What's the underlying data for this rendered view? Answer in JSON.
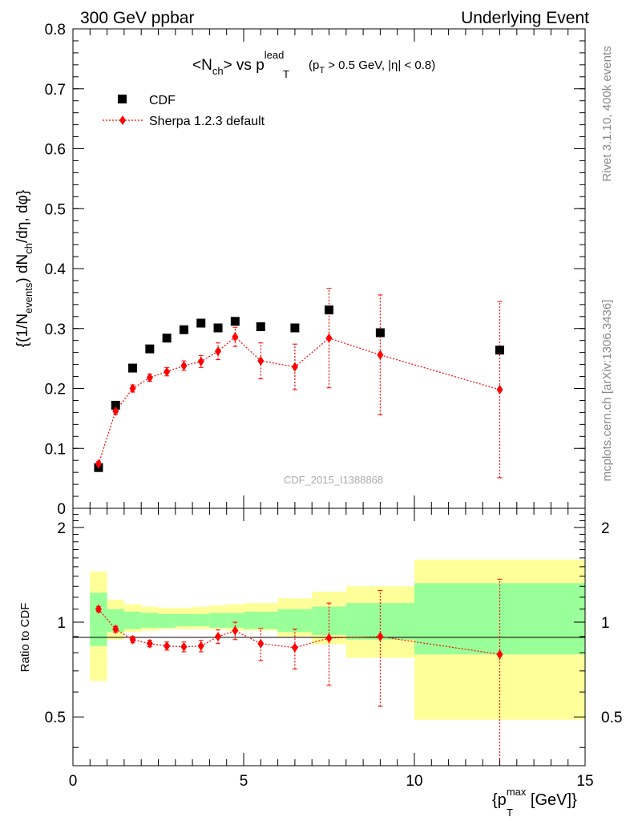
{
  "header": {
    "left": "300 GeV ppbar",
    "right": "Underlying Event"
  },
  "side_labels": {
    "rivet": "Rivet 3.1.10,  400k events",
    "mcplots": "mcplots.cern.ch [arXiv:1306.3436]"
  },
  "plot_title": {
    "main": "<N",
    "main_sub": "ch",
    "main_rest": "> vs p",
    "pt_sup": "lead",
    "pt_sub": "T",
    "cut_open": "(p",
    "cut_sub": "T",
    "cut_rest": " > 0.5 GeV, |η| < 0.8)"
  },
  "analysis_id": "CDF_2015_I1388868",
  "colors": {
    "data": "#000000",
    "mc": "#ff0000",
    "band_inner": "#99ff99",
    "band_outer": "#ffff99"
  },
  "chart_data": [
    {
      "type": "scatter",
      "panel": "main",
      "ylabel": "{(1/N_events) dN_ch/dη, dφ}",
      "ylabel_parts": {
        "a": "{(1/N",
        "a_sub": "events",
        "b": ") dN",
        "b_sub": "ch",
        "c": "/dη, dφ}"
      },
      "ylim": [
        0,
        0.8
      ],
      "y_ticks": [
        "0",
        "0.1",
        "0.2",
        "0.3",
        "0.4",
        "0.5",
        "0.6",
        "0.7",
        "0.8"
      ],
      "legend": [
        "CDF",
        "Sherpa 1.2.3 default"
      ],
      "legend_position": "top-left",
      "series": [
        {
          "name": "CDF",
          "marker": "square",
          "x": [
            0.75,
            1.25,
            1.75,
            2.25,
            2.75,
            3.25,
            3.75,
            4.25,
            4.75,
            5.5,
            6.5,
            7.5,
            9.0,
            12.5
          ],
          "y": [
            0.068,
            0.172,
            0.234,
            0.266,
            0.284,
            0.298,
            0.309,
            0.301,
            0.312,
            0.303,
            0.301,
            0.331,
            0.293,
            0.264
          ]
        },
        {
          "name": "Sherpa 1.2.3 default",
          "marker": "diamond",
          "x": [
            0.75,
            1.25,
            1.75,
            2.25,
            2.75,
            3.25,
            3.75,
            4.25,
            4.75,
            5.5,
            6.5,
            7.5,
            9.0,
            12.5
          ],
          "y": [
            0.074,
            0.162,
            0.2,
            0.218,
            0.228,
            0.238,
            0.245,
            0.262,
            0.286,
            0.246,
            0.236,
            0.284,
            0.256,
            0.198
          ],
          "err": [
            0.004,
            0.005,
            0.006,
            0.006,
            0.007,
            0.008,
            0.01,
            0.014,
            0.016,
            0.03,
            0.038,
            0.083,
            0.1,
            0.147
          ]
        }
      ]
    },
    {
      "type": "scatter",
      "panel": "ratio",
      "ylabel": "Ratio to CDF",
      "xlabel_parts": {
        "a": "{p",
        "sup": "max",
        "sub": "T",
        "b": " [GeV]}"
      },
      "xlim": [
        0,
        15
      ],
      "x_ticks": [
        "0",
        "5",
        "10",
        "15"
      ],
      "ylim": [
        0.35,
        2.3
      ],
      "y_ticks": [
        "0.5",
        "1",
        "2"
      ],
      "bands": {
        "edges": [
          0.5,
          1.0,
          1.5,
          2.0,
          2.5,
          3.0,
          3.5,
          4.0,
          4.5,
          5.0,
          6.0,
          7.0,
          8.0,
          10.0,
          15.0
        ],
        "inner_lo": [
          0.84,
          0.93,
          0.95,
          0.96,
          0.96,
          0.97,
          0.97,
          0.96,
          0.96,
          0.95,
          0.93,
          0.91,
          0.88,
          0.79
        ],
        "inner_hi": [
          1.24,
          1.1,
          1.08,
          1.07,
          1.06,
          1.06,
          1.06,
          1.07,
          1.07,
          1.08,
          1.1,
          1.12,
          1.15,
          1.33
        ],
        "outer_lo": [
          0.65,
          0.88,
          0.93,
          0.94,
          0.95,
          0.95,
          0.95,
          0.95,
          0.94,
          0.94,
          0.9,
          0.85,
          0.77,
          0.49
        ],
        "outer_hi": [
          1.45,
          1.18,
          1.14,
          1.12,
          1.11,
          1.11,
          1.12,
          1.13,
          1.14,
          1.15,
          1.19,
          1.25,
          1.3,
          1.58
        ]
      },
      "series": [
        {
          "name": "Sherpa 1.2.3 default",
          "x": [
            0.75,
            1.25,
            1.75,
            2.25,
            2.75,
            3.25,
            3.75,
            4.25,
            4.75,
            5.5,
            6.5,
            7.5,
            9.0,
            12.5
          ],
          "y": [
            1.1,
            0.95,
            0.88,
            0.855,
            0.84,
            0.835,
            0.84,
            0.9,
            0.94,
            0.855,
            0.83,
            0.89,
            0.9,
            0.79
          ],
          "err": [
            0.02,
            0.02,
            0.02,
            0.02,
            0.025,
            0.03,
            0.035,
            0.045,
            0.06,
            0.1,
            0.12,
            0.26,
            0.36,
            0.58
          ]
        }
      ]
    }
  ]
}
